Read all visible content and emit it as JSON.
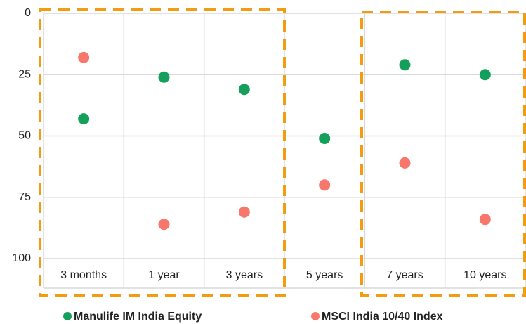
{
  "chart_data": {
    "type": "scatter",
    "categories": [
      "3 months",
      "1 year",
      "3 years",
      "5 years",
      "7 years",
      "10 years"
    ],
    "series": [
      {
        "name": "Manulife IM India Equity",
        "color": "#14a05a",
        "values": [
          43,
          26,
          31,
          51,
          21,
          25
        ]
      },
      {
        "name": "MSCI India 10/40 Index",
        "color": "#f7786b",
        "values": [
          18,
          86,
          81,
          70,
          61,
          84
        ]
      }
    ],
    "ylim": [
      0,
      100
    ],
    "yticks": [
      0,
      25,
      50,
      75,
      100
    ],
    "y_inverted": true,
    "grid": true,
    "legend": "bottom"
  }
}
